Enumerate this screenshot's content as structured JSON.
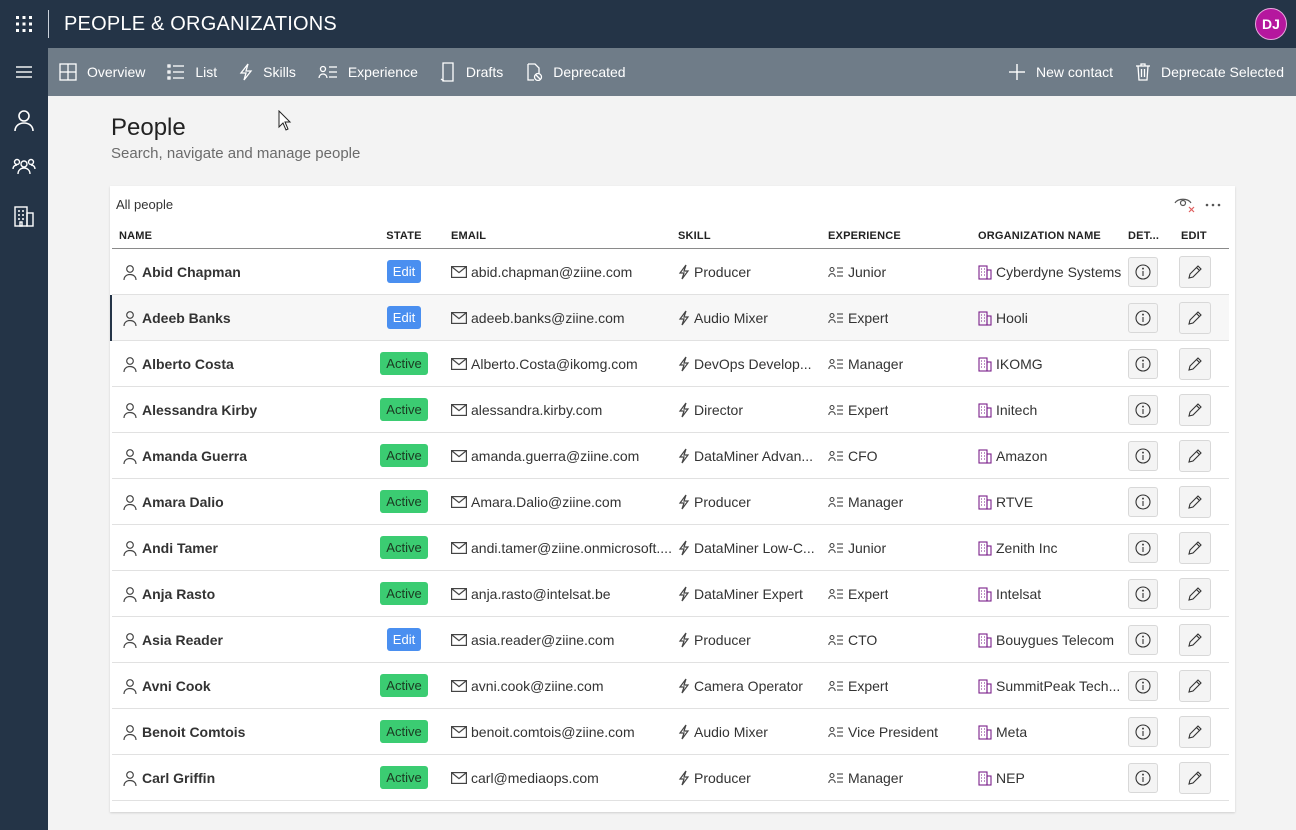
{
  "app": {
    "title": "PEOPLE & ORGANIZATIONS",
    "user_initials": "DJ"
  },
  "colors": {
    "topbar": "#243447",
    "commandbar": "#6f7c88",
    "avatar": "#b5179e",
    "badge_edit": "#4a8ff0",
    "badge_active": "#3bcc72"
  },
  "leftrail": {
    "icons": [
      "hamburger-icon",
      "person-icon",
      "people-icon",
      "organization-icon"
    ]
  },
  "toolbar": {
    "items": [
      {
        "label": "Overview",
        "icon": "overview-icon"
      },
      {
        "label": "List",
        "icon": "list-icon"
      },
      {
        "label": "Skills",
        "icon": "lightning-icon"
      },
      {
        "label": "Experience",
        "icon": "experience-icon"
      },
      {
        "label": "Drafts",
        "icon": "drafts-icon"
      },
      {
        "label": "Deprecated",
        "icon": "deprecated-icon"
      }
    ],
    "new_contact": "New contact",
    "deprecate_selected": "Deprecate Selected"
  },
  "page": {
    "title": "People",
    "subtitle": "Search, navigate and manage people"
  },
  "table": {
    "title": "All people",
    "columns": [
      "NAME",
      "STATE",
      "EMAIL",
      "SKILL",
      "EXPERIENCE",
      "ORGANIZATION NAME",
      "DET...",
      "EDIT"
    ],
    "rows": [
      {
        "name": "Abid Chapman",
        "state": "Edit",
        "email": "abid.chapman@ziine.com",
        "skill": "Producer",
        "experience": "Junior",
        "organization": "Cyberdyne Systems"
      },
      {
        "name": "Adeeb Banks",
        "state": "Edit",
        "email": "adeeb.banks@ziine.com",
        "skill": "Audio Mixer",
        "experience": "Expert",
        "organization": "Hooli",
        "selected": true
      },
      {
        "name": "Alberto Costa",
        "state": "Active",
        "email": "Alberto.Costa@ikomg.com",
        "skill": "DevOps Develop...",
        "experience": "Manager",
        "organization": "IKOMG"
      },
      {
        "name": "Alessandra Kirby",
        "state": "Active",
        "email": "alessandra.kirby.com",
        "skill": "Director",
        "experience": "Expert",
        "organization": "Initech"
      },
      {
        "name": "Amanda Guerra",
        "state": "Active",
        "email": "amanda.guerra@ziine.com",
        "skill": "DataMiner Advan...",
        "experience": "CFO",
        "organization": "Amazon"
      },
      {
        "name": "Amara Dalio",
        "state": "Active",
        "email": "Amara.Dalio@ziine.com",
        "skill": "Producer",
        "experience": "Manager",
        "organization": "RTVE"
      },
      {
        "name": "Andi Tamer",
        "state": "Active",
        "email": "andi.tamer@ziine.onmicrosoft....",
        "skill": "DataMiner Low-C...",
        "experience": "Junior",
        "organization": "Zenith Inc"
      },
      {
        "name": "Anja Rasto",
        "state": "Active",
        "email": "anja.rasto@intelsat.be",
        "skill": "DataMiner Expert",
        "experience": "Expert",
        "organization": "Intelsat"
      },
      {
        "name": "Asia Reader",
        "state": "Edit",
        "email": "asia.reader@ziine.com",
        "skill": "Producer",
        "experience": "CTO",
        "organization": "Bouygues Telecom"
      },
      {
        "name": "Avni Cook",
        "state": "Active",
        "email": "avni.cook@ziine.com",
        "skill": "Camera Operator",
        "experience": "Expert",
        "organization": "SummitPeak Tech..."
      },
      {
        "name": "Benoit Comtois",
        "state": "Active",
        "email": "benoit.comtois@ziine.com",
        "skill": "Audio Mixer",
        "experience": "Vice President",
        "organization": "Meta"
      },
      {
        "name": "Carl Griffin",
        "state": "Active",
        "email": "carl@mediaops.com",
        "skill": "Producer",
        "experience": "Manager",
        "organization": "NEP"
      }
    ]
  }
}
